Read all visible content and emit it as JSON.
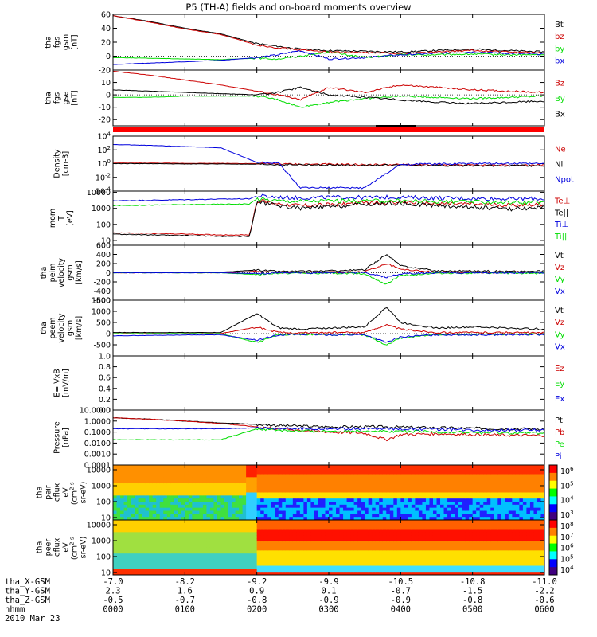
{
  "title": "P5 (TH-A) fields and on-board moments overview",
  "x_tick_values": [
    "-7.0",
    "-8.2",
    "-9.2",
    "-9.9",
    "-10.5",
    "-10.8",
    "-11.0"
  ],
  "ephemeris": [
    {
      "label": "tha_X-GSM",
      "values": [
        "-7.0",
        "-8.2",
        "-9.2",
        "-9.9",
        "-10.5",
        "-10.8",
        "-11.0"
      ]
    },
    {
      "label": "tha_Y-GSM",
      "values": [
        "2.3",
        "1.6",
        "0.9",
        "0.1",
        "-0.7",
        "-1.5",
        "-2.2"
      ]
    },
    {
      "label": "tha_Z-GSM",
      "values": [
        "-0.5",
        "-0.7",
        "-0.8",
        "-0.9",
        "-0.9",
        "-0.8",
        "-0.6"
      ]
    },
    {
      "label": "hhmm",
      "values": [
        "0000",
        "0100",
        "0200",
        "0300",
        "0400",
        "0500",
        "0600"
      ]
    }
  ],
  "date": "2010 Mar 23",
  "colors": {
    "black": "#000000",
    "red": "#cc0000",
    "green": "#00dd00",
    "blue": "#0000dd"
  },
  "chart_data": [
    {
      "type": "line",
      "name": "fgs-gsm",
      "ylabel_lines": [
        "tha",
        "fgs",
        "gsm",
        "[nT]"
      ],
      "ylim": [
        -20,
        60
      ],
      "y_ticks": [
        "60",
        "40",
        "20",
        "0",
        "-20"
      ],
      "x": [
        0,
        0.5,
        1,
        1.5,
        2,
        2.3,
        2.6,
        3,
        3.5,
        4,
        4.5,
        5,
        5.5,
        6
      ],
      "series": [
        {
          "name": "Bt",
          "color": "#000000",
          "values": [
            58,
            50,
            40,
            32,
            18,
            14,
            10,
            8,
            7,
            6,
            8,
            10,
            8,
            6
          ]
        },
        {
          "name": "bz",
          "color": "#cc0000",
          "values": [
            58,
            49,
            39,
            31,
            16,
            12,
            9,
            6,
            5,
            4,
            6,
            8,
            6,
            5
          ]
        },
        {
          "name": "by",
          "color": "#00dd00",
          "values": [
            -2,
            -3,
            -4,
            -5,
            -3,
            -4,
            0,
            6,
            -2,
            2,
            2,
            3,
            2,
            2
          ]
        },
        {
          "name": "bx",
          "color": "#0000dd",
          "values": [
            -12,
            -10,
            -8,
            -6,
            -2,
            2,
            8,
            -4,
            -2,
            2,
            4,
            6,
            4,
            3
          ]
        }
      ]
    },
    {
      "type": "line",
      "name": "fgs-gse",
      "ylabel_lines": [
        "tha",
        "fgs",
        "gse",
        "[nT]"
      ],
      "ylim": [
        -25,
        20
      ],
      "y_ticks": [
        "20",
        "10",
        "0",
        "-10",
        "-20"
      ],
      "x": [
        0,
        0.5,
        1,
        1.5,
        2,
        2.3,
        2.6,
        3,
        3.5,
        4,
        4.5,
        5,
        5.5,
        6
      ],
      "series": [
        {
          "name": "Bz",
          "color": "#cc0000",
          "values": [
            19,
            16,
            12,
            8,
            3,
            0,
            -4,
            6,
            2,
            8,
            6,
            4,
            3,
            2
          ]
        },
        {
          "name": "By",
          "color": "#00dd00",
          "values": [
            -2,
            -2,
            -1,
            -1,
            -1,
            -4,
            -10,
            -6,
            -3,
            -1,
            -2,
            -3,
            -2,
            -1
          ]
        },
        {
          "name": "Bx",
          "color": "#000000",
          "values": [
            4,
            3,
            2,
            1,
            0,
            2,
            6,
            0,
            -2,
            -4,
            -6,
            -7,
            -6,
            -5
          ]
        }
      ]
    },
    {
      "type": "line",
      "name": "density",
      "ylabel_lines": [
        "Density",
        "[cm-3]"
      ],
      "y_log": true,
      "ylim": [
        0.0001,
        10000
      ],
      "y_ticks": [
        "10^4",
        "10^2",
        "10^0",
        "10^-2",
        "10^-4"
      ],
      "x": [
        0,
        0.5,
        1,
        1.5,
        2,
        2.3,
        2.6,
        3,
        3.5,
        4,
        4.5,
        5,
        5.5,
        6
      ],
      "series": [
        {
          "name": "Ne",
          "color": "#cc0000",
          "values": [
            1.2,
            1.2,
            1.1,
            1.1,
            1.0,
            0.9,
            0.8,
            0.8,
            0.7,
            0.7,
            0.7,
            0.6,
            0.6,
            0.6
          ]
        },
        {
          "name": "Ni",
          "color": "#000000",
          "values": [
            1.0,
            1.0,
            0.9,
            0.9,
            0.8,
            0.7,
            0.7,
            0.6,
            0.6,
            0.6,
            0.5,
            0.5,
            0.5,
            0.5
          ]
        },
        {
          "name": "Npot",
          "color": "#0000dd",
          "values": [
            600,
            450,
            300,
            200,
            1.5,
            1.2,
            0.0003,
            0.0003,
            0.0003,
            0.8,
            0.9,
            1.0,
            1.0,
            1.0
          ]
        }
      ]
    },
    {
      "type": "line",
      "name": "mom-temp",
      "ylabel_lines": [
        "mom",
        "T",
        "[eV]"
      ],
      "y_log": true,
      "ylim": [
        5,
        12000
      ],
      "y_ticks": [
        "10000",
        "1000",
        "100",
        "10"
      ],
      "x": [
        0,
        0.5,
        1,
        1.5,
        1.9,
        2,
        2.3,
        2.6,
        3,
        3.5,
        4,
        4.5,
        5,
        5.5,
        6
      ],
      "series": [
        {
          "name": "Te⊥",
          "color": "#cc0000",
          "values": [
            30,
            28,
            25,
            22,
            22,
            3000,
            2000,
            1500,
            1700,
            2200,
            2500,
            2000,
            1800,
            1600,
            1800
          ]
        },
        {
          "name": "Te||",
          "color": "#000000",
          "values": [
            25,
            22,
            20,
            18,
            18,
            2500,
            1500,
            1000,
            1200,
            1800,
            2000,
            1500,
            1200,
            900,
            1200
          ]
        },
        {
          "name": "Ti⊥",
          "color": "#0000dd",
          "values": [
            3000,
            3200,
            3500,
            3800,
            4000,
            6000,
            5000,
            4500,
            5000,
            4800,
            5000,
            4500,
            4200,
            4000,
            4000
          ]
        },
        {
          "name": "Ti||",
          "color": "#00dd00",
          "values": [
            1500,
            1600,
            1700,
            1800,
            1900,
            4000,
            3000,
            2800,
            3000,
            2900,
            3000,
            2700,
            2500,
            2400,
            2400
          ]
        }
      ]
    },
    {
      "type": "line",
      "name": "peim-velocity",
      "ylabel_lines": [
        "tha",
        "peim",
        "velocity",
        "gsm",
        "[km/s]"
      ],
      "ylim": [
        -600,
        600
      ],
      "y_ticks": [
        "600",
        "400",
        "200",
        "0",
        "-200",
        "-400",
        "-600"
      ],
      "x": [
        0,
        0.5,
        1,
        1.5,
        2,
        2.3,
        2.6,
        3,
        3.5,
        3.8,
        4,
        4.5,
        5,
        5.5,
        6
      ],
      "series": [
        {
          "name": "Vt",
          "color": "#000000",
          "values": [
            10,
            10,
            10,
            10,
            60,
            30,
            30,
            40,
            60,
            400,
            150,
            40,
            40,
            30,
            30
          ]
        },
        {
          "name": "Vz",
          "color": "#cc0000",
          "values": [
            0,
            0,
            0,
            0,
            30,
            10,
            10,
            10,
            20,
            200,
            80,
            10,
            10,
            10,
            10
          ]
        },
        {
          "name": "Vy",
          "color": "#00dd00",
          "values": [
            0,
            0,
            0,
            0,
            -40,
            -10,
            -10,
            -10,
            -20,
            -250,
            -60,
            -10,
            -10,
            -10,
            -10
          ]
        },
        {
          "name": "Vx",
          "color": "#0000dd",
          "values": [
            0,
            0,
            0,
            0,
            -20,
            0,
            0,
            0,
            0,
            -100,
            -30,
            0,
            0,
            0,
            0
          ]
        }
      ]
    },
    {
      "type": "line",
      "name": "peem-velocity",
      "ylabel_lines": [
        "tha",
        "peem",
        "velocity",
        "gsm",
        "[km/s]"
      ],
      "ylim": [
        -1000,
        1500
      ],
      "y_ticks": [
        "1500",
        "1000",
        "500",
        "0",
        "-500"
      ],
      "x": [
        0,
        0.5,
        1,
        1.5,
        2,
        2.3,
        2.6,
        3,
        3.5,
        3.8,
        4,
        4.5,
        5,
        5.5,
        6
      ],
      "series": [
        {
          "name": "Vt",
          "color": "#000000",
          "values": [
            50,
            50,
            50,
            50,
            900,
            250,
            200,
            250,
            300,
            1200,
            500,
            250,
            300,
            250,
            200
          ]
        },
        {
          "name": "Vz",
          "color": "#cc0000",
          "values": [
            0,
            0,
            0,
            0,
            300,
            50,
            30,
            50,
            50,
            400,
            200,
            50,
            50,
            50,
            30
          ]
        },
        {
          "name": "Vy",
          "color": "#00dd00",
          "values": [
            0,
            0,
            0,
            0,
            -400,
            -50,
            -30,
            -50,
            -50,
            -500,
            -200,
            -30,
            -30,
            -30,
            -30
          ]
        },
        {
          "name": "Vx",
          "color": "#0000dd",
          "values": [
            -100,
            -80,
            -60,
            -50,
            -300,
            -50,
            -30,
            -50,
            -50,
            -400,
            -150,
            -50,
            -50,
            -50,
            -50
          ]
        }
      ]
    },
    {
      "type": "line",
      "name": "efield",
      "ylabel_lines": [
        "E=-VxB",
        "[mV/m]"
      ],
      "ylim": [
        0,
        1
      ],
      "y_ticks": [
        "1.0",
        "0.8",
        "0.6",
        "0.4",
        "0.2",
        "0.0"
      ],
      "x": [],
      "series": [
        {
          "name": "Ez",
          "color": "#cc0000",
          "values": []
        },
        {
          "name": "Ey",
          "color": "#00dd00",
          "values": []
        },
        {
          "name": "Ex",
          "color": "#0000dd",
          "values": []
        }
      ]
    },
    {
      "type": "line",
      "name": "pressure",
      "ylabel_lines": [
        "Pressure",
        "[nPa]"
      ],
      "y_log": true,
      "ylim": [
        0.0001,
        10
      ],
      "y_ticks": [
        "10.0000",
        "1.0000",
        "0.1000",
        "0.0100",
        "0.0010",
        "0.0001"
      ],
      "x": [
        0,
        0.5,
        1,
        1.5,
        2,
        2.3,
        2.6,
        3,
        3.5,
        3.8,
        4,
        4.5,
        5,
        5.5,
        6
      ],
      "series": [
        {
          "name": "Pt",
          "color": "#000000",
          "values": [
            2.0,
            1.5,
            1.0,
            0.7,
            0.5,
            0.4,
            0.35,
            0.3,
            0.3,
            0.3,
            0.28,
            0.25,
            0.22,
            0.2,
            0.2
          ]
        },
        {
          "name": "Pb",
          "color": "#cc0000",
          "values": [
            2.0,
            1.5,
            1.0,
            0.6,
            0.3,
            0.2,
            0.15,
            0.1,
            0.08,
            0.02,
            0.06,
            0.07,
            0.06,
            0.05,
            0.05
          ]
        },
        {
          "name": "Pe",
          "color": "#00dd00",
          "values": [
            0.02,
            0.02,
            0.02,
            0.02,
            0.2,
            0.15,
            0.12,
            0.12,
            0.13,
            0.12,
            0.12,
            0.1,
            0.09,
            0.08,
            0.08
          ]
        },
        {
          "name": "Pi",
          "color": "#0000dd",
          "values": [
            0.2,
            0.2,
            0.2,
            0.2,
            0.25,
            0.22,
            0.2,
            0.2,
            0.2,
            0.2,
            0.2,
            0.18,
            0.16,
            0.15,
            0.15
          ]
        }
      ]
    },
    {
      "type": "heatmap",
      "name": "peir-eflux",
      "ylabel_lines": [
        "tha",
        "peir",
        "eflux",
        "eV",
        "(cm^2-s-",
        "sr-eV)"
      ],
      "y_log": true,
      "ylim": [
        7,
        20000
      ],
      "y_ticks": [
        "10000",
        "1000",
        "100",
        "10"
      ],
      "colorbar_ticks": [
        "10^6",
        "10^5",
        "10^4",
        "10^3"
      ]
    },
    {
      "type": "heatmap",
      "name": "peer-eflux",
      "ylabel_lines": [
        "tha",
        "peer",
        "eflux",
        "eV",
        "(cm^2-s-",
        "sr-eV)"
      ],
      "y_log": true,
      "ylim": [
        7,
        20000
      ],
      "y_ticks": [
        "10000",
        "1000",
        "100",
        "10"
      ],
      "colorbar_ticks": [
        "10^8",
        "10^7",
        "10^6",
        "10^5",
        "10^4"
      ]
    }
  ]
}
